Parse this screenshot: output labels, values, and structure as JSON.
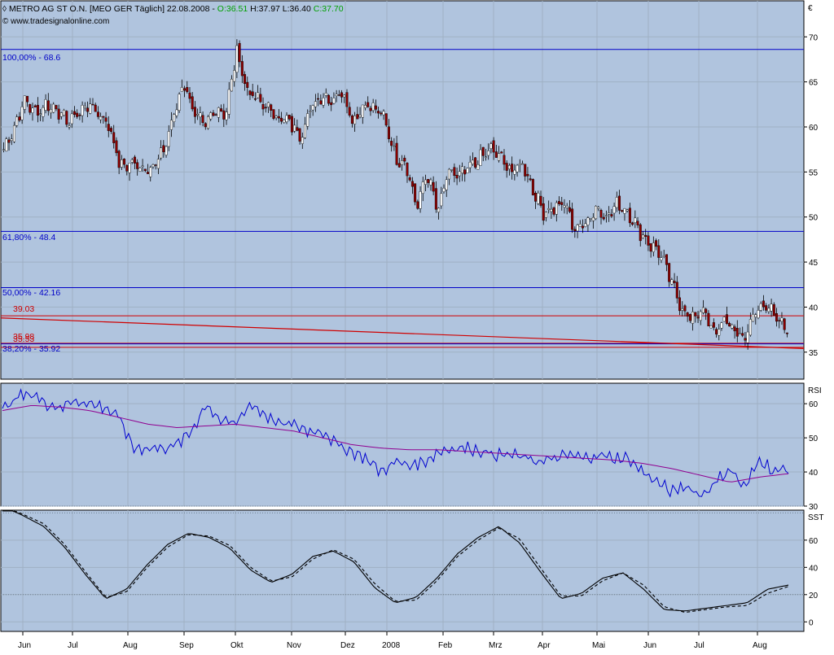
{
  "header": {
    "title": "METRO AG ST O.N. [MEO GER  Täglich] 22.08.2008 - ",
    "open": "O:36.51",
    "high": "H:37.97",
    "low": "L:36.40",
    "close": "C:37.70",
    "source": "© www.tradesignalonline.com",
    "colors": {
      "open": "#00a000",
      "high": "#000000",
      "low": "#000000",
      "close": "#00a000"
    }
  },
  "chart_data": [
    {
      "type": "candlestick",
      "panel": "price",
      "unit_label": "€",
      "ylim": [
        32,
        74
      ],
      "yticks": [
        35,
        40,
        45,
        50,
        55,
        60,
        65,
        70
      ],
      "x_months": [
        "Jun",
        "Jul",
        "Aug",
        "Sep",
        "Okt",
        "Nov",
        "Dez",
        "2008",
        "Feb",
        "Mrz",
        "Apr",
        "Mai",
        "Jun",
        "Jul",
        "Aug"
      ],
      "close_path": [
        57.5,
        60,
        63,
        61.5,
        62.5,
        62,
        60.5,
        61.5,
        62.5,
        61.5,
        60,
        55.5,
        56,
        55.5,
        55.5,
        57,
        61,
        65,
        61.5,
        60,
        62,
        61.5,
        68.5,
        64,
        63,
        62,
        61,
        60.5,
        59,
        62,
        63.5,
        63,
        64,
        60.5,
        62.5,
        62,
        61,
        56.5,
        56,
        51,
        55,
        50.5,
        55,
        54.5,
        55.5,
        56.5,
        57.5,
        56.5,
        55,
        56,
        53,
        50.5,
        51,
        51.5,
        48.5,
        49.5,
        51,
        50,
        51.5,
        50.5,
        48.5,
        47,
        46,
        43,
        40,
        38.5,
        40,
        37,
        38.5,
        37.5,
        36.5,
        39.5,
        40.5,
        38.5,
        37.7
      ],
      "hlines": [
        {
          "label": "100,00% - 68.6",
          "value": 68.6,
          "color": "#0000c8"
        },
        {
          "label": "61,80% - 48.4",
          "value": 48.4,
          "color": "#0000c8"
        },
        {
          "label": "50,00% - 42.16",
          "value": 42.16,
          "color": "#0000c8"
        },
        {
          "label": "39.03",
          "value": 39.03,
          "color": "#d00000"
        },
        {
          "label": "35.98",
          "value": 35.98,
          "color": "#d00000"
        },
        {
          "label": "35.53",
          "value": 35.53,
          "color": "#d00000"
        },
        {
          "label": "38,20% - 35.92",
          "value": 35.92,
          "color": "#0000c8"
        }
      ],
      "trendline": {
        "from": 38.8,
        "to": 35.4,
        "color": "#d00000"
      },
      "colors": {
        "up": "#ffffff",
        "down": "#8b0000",
        "grid": "#9fb1c4",
        "background": "#b0c4de"
      }
    },
    {
      "type": "line",
      "panel": "rsi",
      "label": "RSI",
      "ylim": [
        30,
        66
      ],
      "yticks": [
        30,
        40,
        50,
        60
      ],
      "dotted_levels": [
        30
      ],
      "series": [
        {
          "values": [
            58,
            62,
            63,
            60,
            59,
            61,
            60,
            59,
            56,
            47,
            47,
            47,
            48,
            52,
            60,
            55,
            54,
            60,
            57,
            54,
            54,
            52,
            52,
            48,
            46,
            44,
            40,
            43,
            42,
            43,
            46,
            47,
            47,
            46,
            45,
            45,
            44,
            43,
            44,
            45,
            44,
            45,
            44,
            44,
            40,
            37,
            34,
            36,
            33,
            37,
            41,
            35,
            44,
            40,
            41
          ],
          "color": "#0000d0"
        },
        {
          "values": [
            58,
            59.5,
            59,
            58,
            56,
            54,
            53,
            53.5,
            54,
            53,
            52,
            50,
            48,
            47,
            46.5,
            46.5,
            46,
            45.5,
            45,
            44.5,
            44,
            43.5,
            42.5,
            41,
            39,
            37,
            38.5,
            39.5
          ],
          "color": "#900090"
        }
      ]
    },
    {
      "type": "line",
      "panel": "sst",
      "label": "SST",
      "ylim": [
        -7,
        82
      ],
      "yticks": [
        0,
        20,
        40,
        60
      ],
      "dotted_levels": [
        20,
        80
      ],
      "series": [
        {
          "values": [
            85,
            78,
            70,
            55,
            35,
            17,
            24,
            42,
            57,
            65,
            62,
            54,
            38,
            29,
            35,
            48,
            52,
            44,
            25,
            14,
            18,
            32,
            50,
            62,
            70,
            58,
            37,
            17,
            21,
            32,
            36,
            24,
            9,
            8,
            10,
            12,
            14,
            24,
            27
          ],
          "color": "#000000",
          "style": "solid"
        },
        {
          "values": [
            85,
            79,
            72,
            57,
            37,
            18,
            22,
            40,
            55,
            64,
            63,
            56,
            40,
            30,
            33,
            46,
            53,
            46,
            28,
            15,
            16,
            30,
            48,
            60,
            69,
            61,
            40,
            19,
            19,
            30,
            36,
            27,
            11,
            7,
            9,
            11,
            12,
            21,
            26
          ],
          "color": "#000000",
          "style": "dashed"
        }
      ]
    }
  ]
}
